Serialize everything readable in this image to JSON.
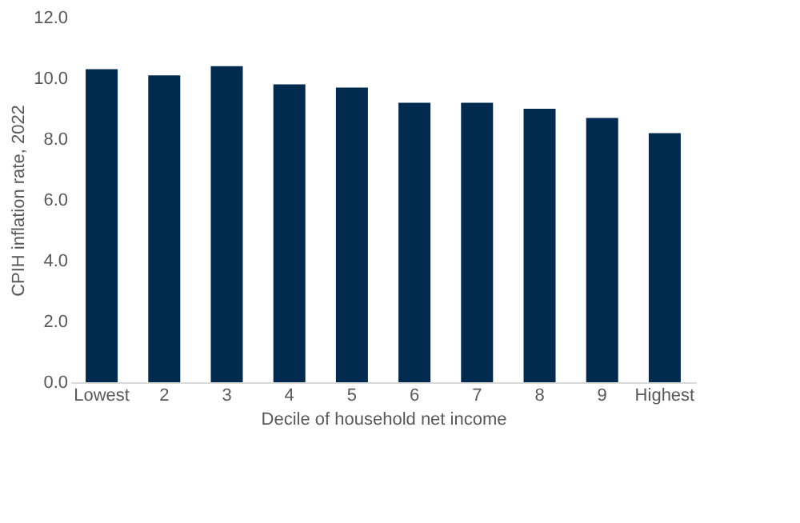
{
  "chart_data": {
    "type": "bar",
    "xlabel": "Decile of household net income",
    "ylabel": "CPIH inflation rate, 2022",
    "categories": [
      "Lowest",
      "2",
      "3",
      "4",
      "5",
      "6",
      "7",
      "8",
      "9",
      "Highest"
    ],
    "values": [
      10.3,
      10.1,
      10.4,
      9.8,
      9.7,
      9.2,
      9.2,
      9.0,
      8.7,
      8.2
    ],
    "color": "#002a4e",
    "ylim": [
      0,
      12
    ],
    "yticks": [
      {
        "value": 0,
        "label": "0.0"
      },
      {
        "value": 2,
        "label": "2.0"
      },
      {
        "value": 4,
        "label": "4.0"
      },
      {
        "value": 6,
        "label": "6.0"
      },
      {
        "value": 8,
        "label": "8.0"
      },
      {
        "value": 10,
        "label": "10.0"
      },
      {
        "value": 12,
        "label": "12.0"
      }
    ],
    "grid": false
  }
}
